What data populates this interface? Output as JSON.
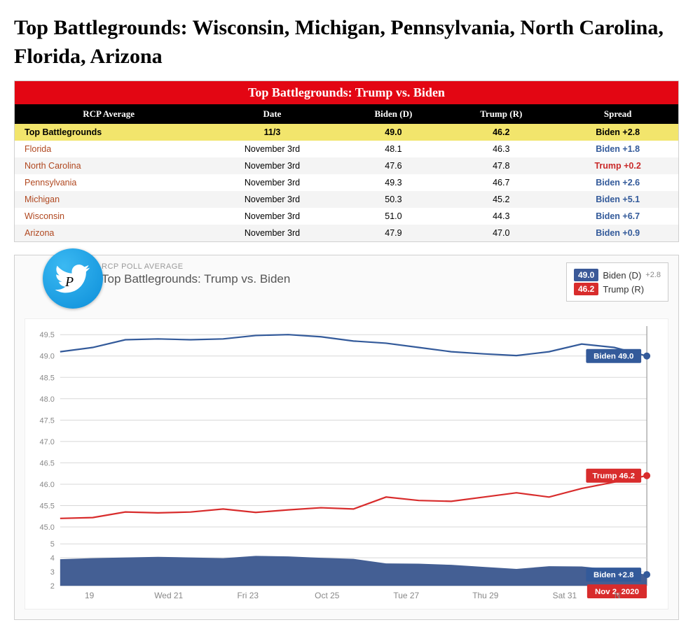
{
  "page_title": "Top Battlegrounds: Wisconsin, Michigan, Pennsylvania, North Carolina, Florida, Arizona",
  "table": {
    "caption": "Top Battlegrounds: Trump vs. Biden",
    "columns": [
      "RCP Average",
      "Date",
      "Biden (D)",
      "Trump (R)",
      "Spread"
    ],
    "rows": [
      {
        "state": "Top Battlegrounds",
        "date": "11/3",
        "biden": "49.0",
        "trump": "46.2",
        "spread": "Biden +2.8",
        "spread_color": "biden",
        "highlight": true,
        "link": false
      },
      {
        "state": "Florida",
        "date": "November 3rd",
        "biden": "48.1",
        "trump": "46.3",
        "spread": "Biden +1.8",
        "spread_color": "biden",
        "highlight": false,
        "link": true
      },
      {
        "state": "North Carolina",
        "date": "November 3rd",
        "biden": "47.6",
        "trump": "47.8",
        "spread": "Trump +0.2",
        "spread_color": "trump",
        "highlight": false,
        "link": true
      },
      {
        "state": "Pennsylvania",
        "date": "November 3rd",
        "biden": "49.3",
        "trump": "46.7",
        "spread": "Biden +2.6",
        "spread_color": "biden",
        "highlight": false,
        "link": true
      },
      {
        "state": "Michigan",
        "date": "November 3rd",
        "biden": "50.3",
        "trump": "45.2",
        "spread": "Biden +5.1",
        "spread_color": "biden",
        "highlight": false,
        "link": true
      },
      {
        "state": "Wisconsin",
        "date": "November 3rd",
        "biden": "51.0",
        "trump": "44.3",
        "spread": "Biden +6.7",
        "spread_color": "biden",
        "highlight": false,
        "link": true
      },
      {
        "state": "Arizona",
        "date": "November 3rd",
        "biden": "47.9",
        "trump": "47.0",
        "spread": "Biden +0.9",
        "spread_color": "biden",
        "highlight": false,
        "link": true
      }
    ]
  },
  "chart": {
    "subtitle": "RCP POLL AVERAGE",
    "title": "Top Battlegrounds: Trump vs. Biden",
    "legend": {
      "biden": {
        "value": "49.0",
        "name": "Biden (D)",
        "spread": "+2.8",
        "color": "#3b5998"
      },
      "trump": {
        "value": "46.2",
        "name": "Trump (R)",
        "color": "#d82c2c"
      }
    },
    "main_yticks": [
      45.0,
      45.5,
      46.0,
      46.5,
      47.0,
      47.5,
      48.0,
      48.5,
      49.0,
      49.5
    ],
    "main_ylim": [
      44.8,
      49.7
    ],
    "spread_yticks": [
      2,
      3,
      4,
      5
    ],
    "spread_ylim": [
      2,
      5
    ],
    "x_labels": [
      "19",
      "Wed 21",
      "Fri 23",
      "Oct 25",
      "Tue 27",
      "Thu 29",
      "Sat 31",
      "N"
    ],
    "x_positions_pct": [
      5,
      18.5,
      32,
      45.5,
      59,
      72.5,
      86,
      95
    ],
    "biden_series": [
      49.1,
      49.2,
      49.38,
      49.4,
      49.38,
      49.4,
      49.48,
      49.5,
      49.45,
      49.35,
      49.3,
      49.2,
      49.1,
      49.05,
      49.01,
      49.1,
      49.28,
      49.2,
      49.0
    ],
    "trump_series": [
      45.2,
      45.22,
      45.35,
      45.33,
      45.35,
      45.42,
      45.34,
      45.4,
      45.45,
      45.42,
      45.7,
      45.62,
      45.6,
      45.7,
      45.8,
      45.7,
      45.9,
      46.05,
      46.2
    ],
    "spread_series": [
      3.9,
      3.98,
      4.03,
      4.07,
      4.03,
      3.98,
      4.14,
      4.1,
      4.0,
      3.93,
      3.6,
      3.58,
      3.5,
      3.35,
      3.21,
      3.4,
      3.38,
      3.15,
      2.8
    ],
    "biden_label": "Biden 49.0",
    "trump_label": "Trump 46.2",
    "spread_label": "Biden +2.8",
    "date_label": "Nov 2, 2020",
    "colors": {
      "biden_line": "#335a9a",
      "trump_line": "#d82c2c",
      "spread_fill": "#445f94",
      "grid": "#d8d8d8",
      "bg": "#ffffff"
    }
  }
}
